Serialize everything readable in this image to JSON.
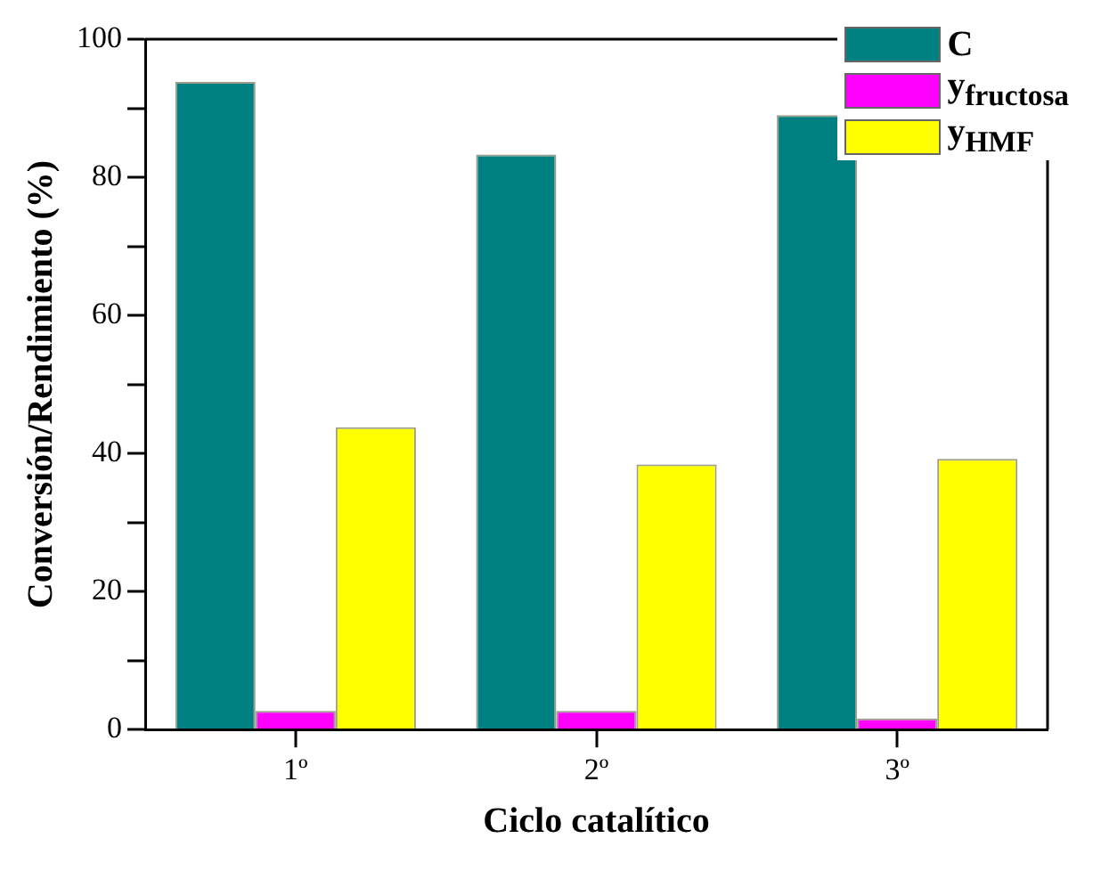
{
  "chart_data": {
    "type": "bar",
    "xlabel": "Ciclo catalítico",
    "ylabel": "Conversión/Rendimiento (%)",
    "categories": [
      "1º",
      "2º",
      "3º"
    ],
    "series": [
      {
        "name": "C",
        "color": "#008080",
        "values": [
          93.8,
          83.3,
          89
        ]
      },
      {
        "name": "y$_{fructosa}$",
        "color": "#ff00ff",
        "values": [
          2.7,
          2.7,
          1.6
        ]
      },
      {
        "name": "y$_{HMF}$",
        "color": "#ffff00",
        "values": [
          43.8,
          38.4,
          39.2
        ]
      }
    ],
    "ylim": [
      0,
      100
    ],
    "yticks": [
      0,
      {
        "value": 10,
        "label": null
      },
      20,
      {
        "value": 30,
        "label": null
      },
      40,
      {
        "value": 50,
        "label": null
      },
      60,
      {
        "value": 70,
        "label": null
      },
      80,
      {
        "value": 90,
        "label": null
      },
      100
    ],
    "grid": false,
    "legend": "top right"
  }
}
